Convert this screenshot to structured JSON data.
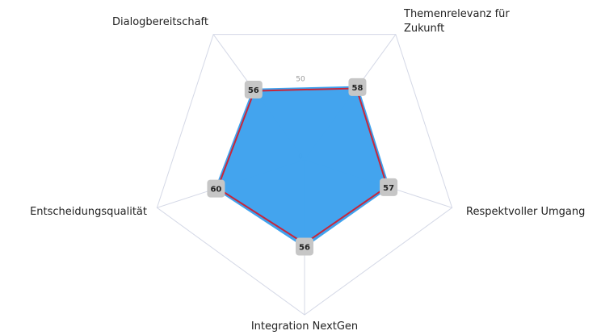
{
  "chart_data": {
    "type": "radar",
    "categories": [
      "Dialogbereitschaft",
      "Themenrelevanz für Zukunft",
      "Respektvoller Umgang",
      "Integration NextGen",
      "Entscheidungsqualität"
    ],
    "series": [
      {
        "color": "#3fa2ee",
        "values": [
          56,
          58,
          57,
          56,
          60
        ]
      },
      {
        "color": "#c8263a",
        "values": [
          55,
          57,
          56,
          54,
          59
        ]
      }
    ],
    "ylim": [
      0,
      100
    ],
    "yticks": [
      0,
      50
    ],
    "grid": true
  }
}
